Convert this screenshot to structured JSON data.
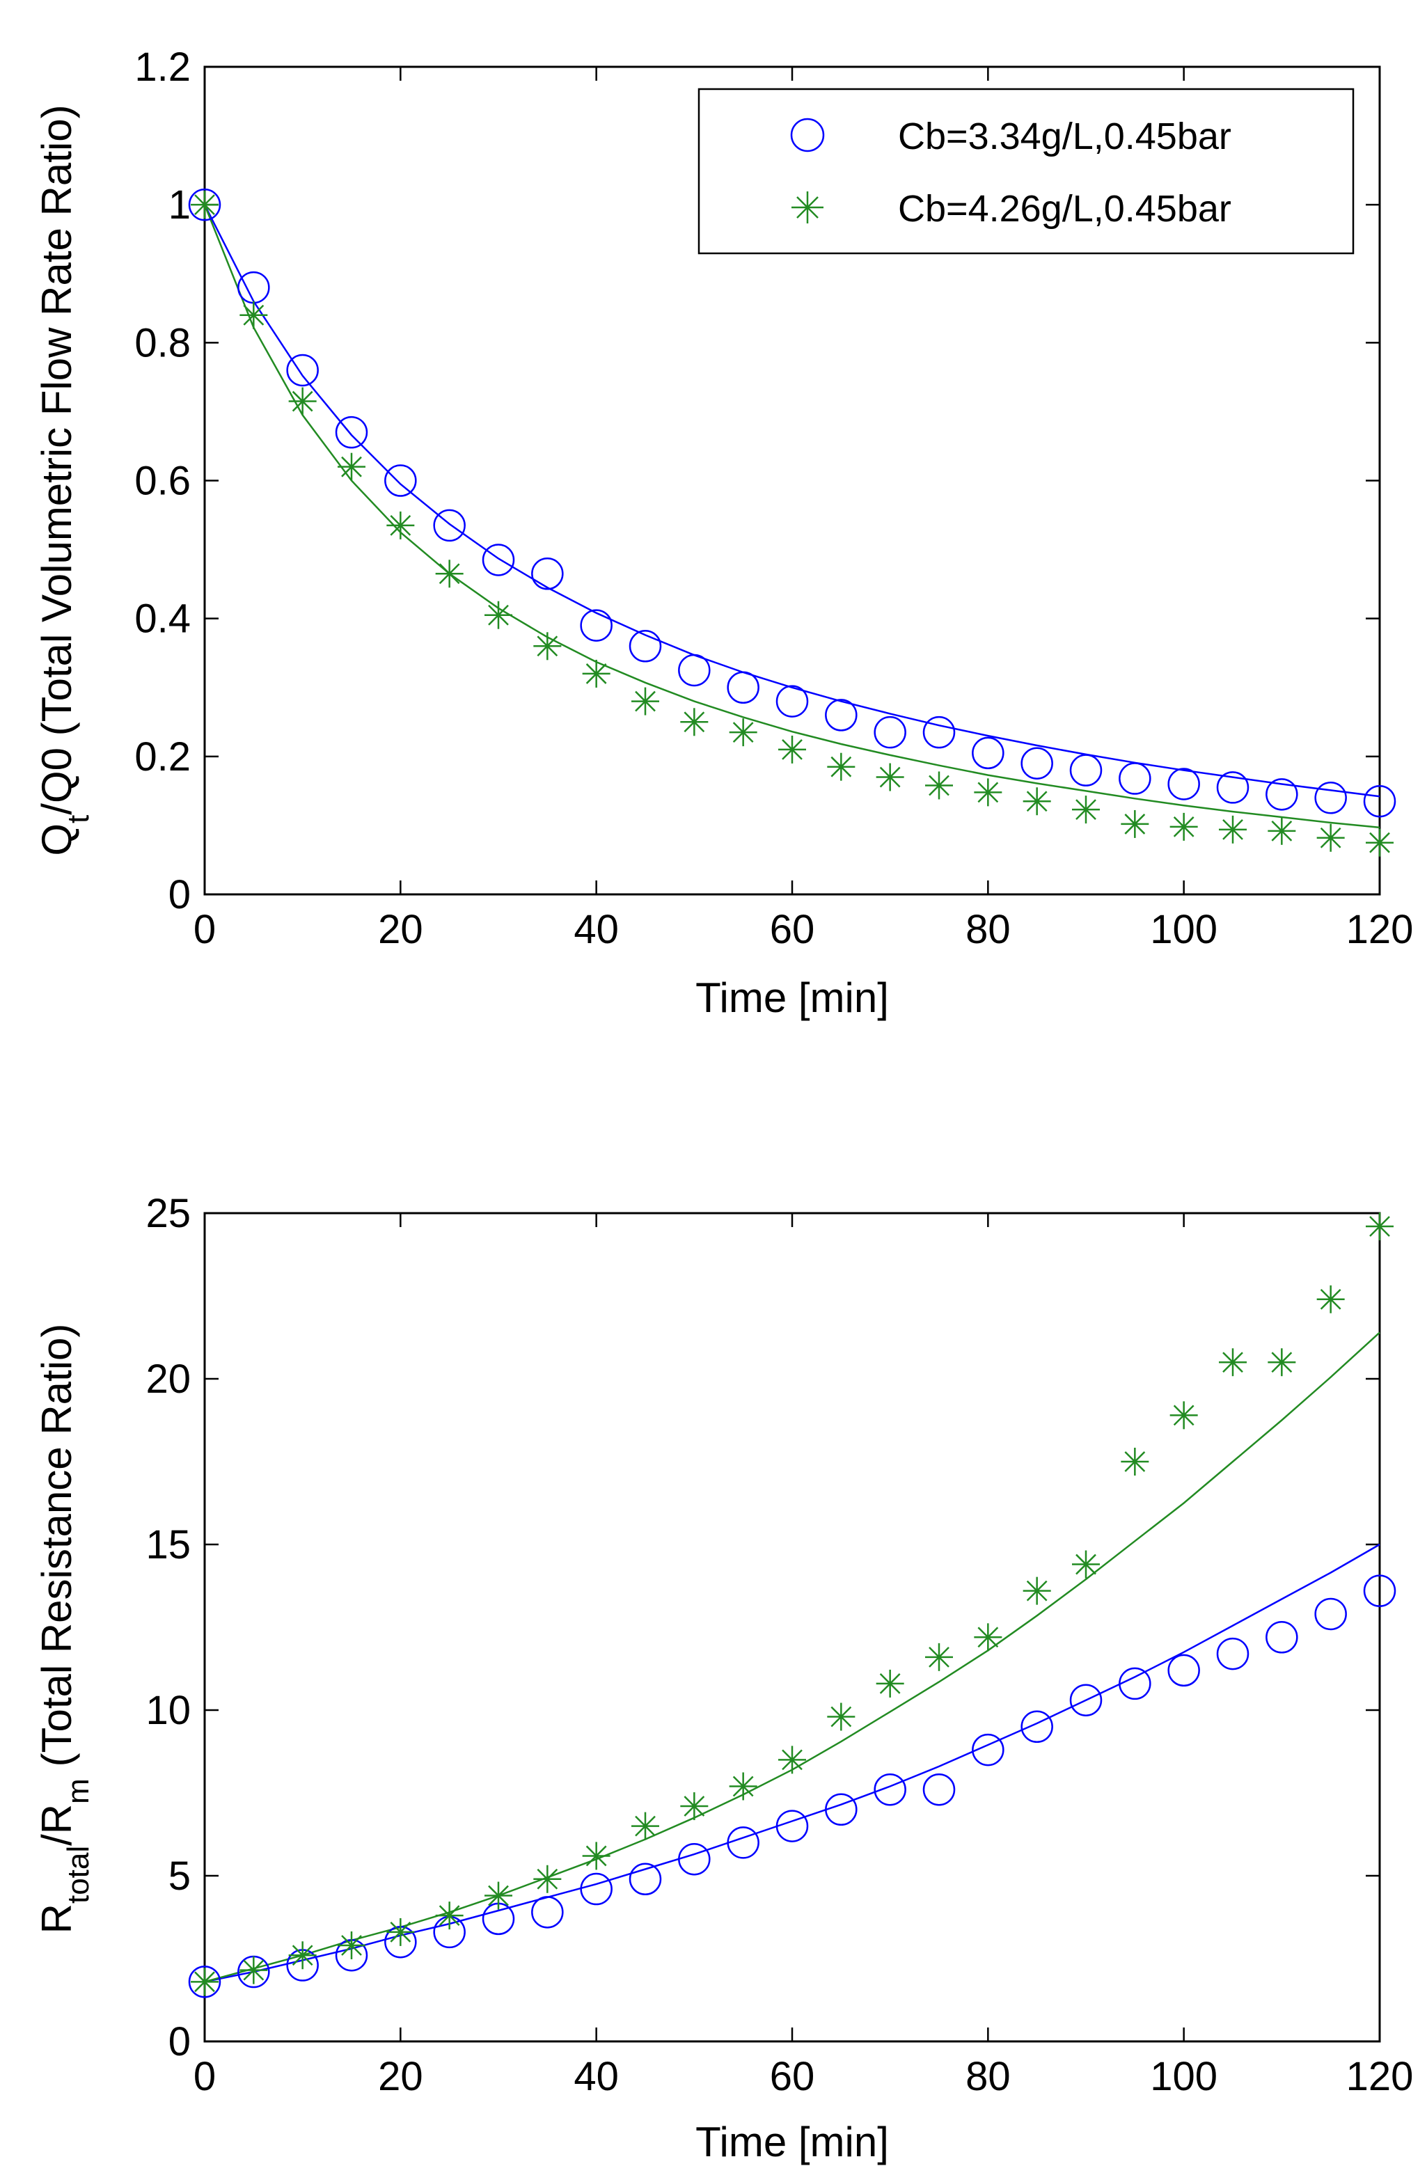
{
  "chart_data": [
    {
      "type": "scatter",
      "title": "",
      "xlabel": "Time [min]",
      "ylabel_parts": {
        "main": "Q",
        "sub": "t",
        "rest": "/Q0 (Total Volumetric Flow Rate Ratio)"
      },
      "xlim": [
        0,
        120
      ],
      "ylim": [
        0,
        1.2
      ],
      "xticks": [
        0,
        20,
        40,
        60,
        80,
        100,
        120
      ],
      "xtick_labels": [
        "0",
        "20",
        "40",
        "60",
        "80",
        "100",
        "120"
      ],
      "yticks": [
        0,
        0.2,
        0.4,
        0.6,
        0.8,
        1,
        1.2
      ],
      "ytick_labels": [
        "0",
        "0.2",
        "0.4",
        "0.6",
        "0.8",
        "1",
        "1.2"
      ],
      "legend_position": "top-right",
      "x": [
        0,
        5,
        10,
        15,
        20,
        25,
        30,
        35,
        40,
        45,
        50,
        55,
        60,
        65,
        70,
        75,
        80,
        85,
        90,
        95,
        100,
        105,
        110,
        115,
        120
      ],
      "series": [
        {
          "name": "Cb=3.34g/L,0.45bar",
          "marker": "circle",
          "color": "#0000ff",
          "values": [
            1.0,
            0.88,
            0.76,
            0.67,
            0.6,
            0.535,
            0.485,
            0.465,
            0.39,
            0.36,
            0.325,
            0.3,
            0.28,
            0.26,
            0.235,
            0.235,
            0.205,
            0.19,
            0.18,
            0.168,
            0.16,
            0.155,
            0.145,
            0.14,
            0.135
          ],
          "fit": [
            1.0,
            0.86,
            0.752,
            0.666,
            0.595,
            0.537,
            0.487,
            0.445,
            0.408,
            0.376,
            0.347,
            0.322,
            0.3,
            0.28,
            0.262,
            0.245,
            0.23,
            0.216,
            0.203,
            0.191,
            0.18,
            0.17,
            0.16,
            0.151,
            0.142
          ]
        },
        {
          "name": "Cb=4.26g/L,0.45bar",
          "marker": "star",
          "color": "#228b22",
          "values": [
            1.0,
            0.84,
            0.715,
            0.62,
            0.535,
            0.465,
            0.405,
            0.36,
            0.32,
            0.28,
            0.25,
            0.235,
            0.21,
            0.185,
            0.17,
            0.158,
            0.148,
            0.135,
            0.123,
            0.102,
            0.098,
            0.094,
            0.092,
            0.082,
            0.075
          ],
          "fit": [
            1.0,
            0.822,
            0.695,
            0.6,
            0.525,
            0.465,
            0.415,
            0.373,
            0.337,
            0.307,
            0.28,
            0.257,
            0.236,
            0.218,
            0.202,
            0.187,
            0.173,
            0.161,
            0.15,
            0.139,
            0.129,
            0.12,
            0.112,
            0.104,
            0.097
          ]
        }
      ]
    },
    {
      "type": "scatter",
      "title": "",
      "xlabel": "Time [min]",
      "ylabel_parts": {
        "main": "R",
        "sub1": "total",
        "mid": "/R",
        "sub2": "m",
        "rest": " (Total Resistance Ratio)"
      },
      "xlim": [
        0,
        120
      ],
      "ylim": [
        0,
        25
      ],
      "xticks": [
        0,
        20,
        40,
        60,
        80,
        100,
        120
      ],
      "xtick_labels": [
        "0",
        "20",
        "40",
        "60",
        "80",
        "100",
        "120"
      ],
      "yticks": [
        0,
        5,
        10,
        15,
        20,
        25
      ],
      "ytick_labels": [
        "0",
        "5",
        "10",
        "15",
        "20",
        "25"
      ],
      "x": [
        0,
        5,
        10,
        15,
        20,
        25,
        30,
        35,
        40,
        45,
        50,
        55,
        60,
        65,
        70,
        75,
        80,
        85,
        90,
        95,
        100,
        105,
        110,
        115,
        120
      ],
      "series": [
        {
          "name": "Cb=3.34g/L,0.45bar",
          "marker": "circle",
          "color": "#0000ff",
          "values": [
            1.8,
            2.1,
            2.3,
            2.6,
            3.0,
            3.3,
            3.7,
            3.9,
            4.6,
            4.9,
            5.5,
            6.0,
            6.5,
            7.0,
            7.6,
            7.6,
            8.8,
            9.5,
            10.3,
            10.8,
            11.2,
            11.7,
            12.2,
            12.9,
            13.6
          ],
          "fit": [
            1.8,
            2.1,
            2.45,
            2.8,
            3.2,
            3.55,
            3.95,
            4.35,
            4.75,
            5.2,
            5.65,
            6.15,
            6.65,
            7.15,
            7.7,
            8.3,
            8.95,
            9.6,
            10.3,
            11.0,
            11.75,
            12.55,
            13.35,
            14.15,
            15.0
          ]
        },
        {
          "name": "Cb=4.26g/L,0.45bar",
          "marker": "star",
          "color": "#228b22",
          "values": [
            1.8,
            2.15,
            2.6,
            2.9,
            3.3,
            3.8,
            4.4,
            4.9,
            5.6,
            6.5,
            7.1,
            7.7,
            8.5,
            9.8,
            10.8,
            11.6,
            12.2,
            13.6,
            14.4,
            17.5,
            18.9,
            20.5,
            20.5,
            22.4,
            24.6
          ],
          "fit": [
            1.8,
            2.2,
            2.6,
            3.05,
            3.45,
            3.9,
            4.4,
            4.95,
            5.5,
            6.1,
            6.75,
            7.45,
            8.2,
            9.05,
            9.95,
            10.85,
            11.8,
            12.85,
            13.95,
            15.1,
            16.25,
            17.5,
            18.75,
            20.05,
            21.4
          ]
        }
      ]
    }
  ]
}
